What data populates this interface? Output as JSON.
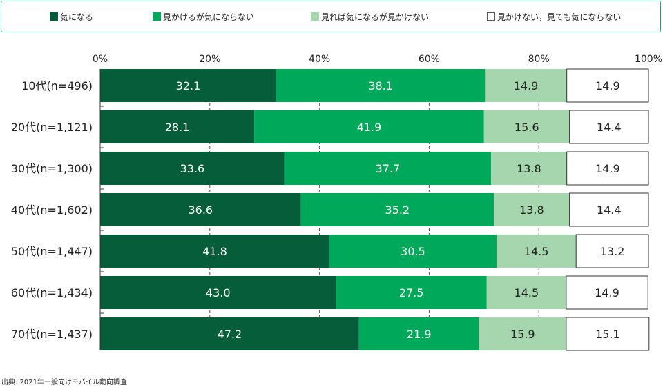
{
  "legend": [
    {
      "label": "気になる",
      "color": "#055d3a"
    },
    {
      "label": "見かけるが気にならない",
      "color": "#00a85a"
    },
    {
      "label": "見れば気になるが見かけない",
      "color": "#a6d6ae"
    },
    {
      "label": "見かけない，見ても気にならない",
      "color": "#ffffff"
    }
  ],
  "chart_data": {
    "type": "bar",
    "orientation": "horizontal",
    "stacked": true,
    "percent_axis_ticks": [
      "0%",
      "20%",
      "40%",
      "60%",
      "80%",
      "100%"
    ],
    "xlim": [
      0,
      100
    ],
    "grid": "vertical dashed",
    "legend_position": "top",
    "categories": [
      "10代(n=496)",
      "20代(n=1,121)",
      "30代(n=1,300)",
      "40代(n=1,602)",
      "50代(n=1,447)",
      "60代(n=1,434)",
      "70代(n=1,437)"
    ],
    "series": [
      {
        "name": "気になる",
        "color": "#055d3a",
        "label_color": "#ffffff",
        "values": [
          32.1,
          28.1,
          33.6,
          36.6,
          41.8,
          43.0,
          47.2
        ],
        "labels": [
          "32.1",
          "28.1",
          "33.6",
          "36.6",
          "41.8",
          "43.0",
          "47.2"
        ]
      },
      {
        "name": "見かけるが気にならない",
        "color": "#00a85a",
        "label_color": "#ffffff",
        "values": [
          38.1,
          41.9,
          37.7,
          35.2,
          30.5,
          27.5,
          21.9
        ],
        "labels": [
          "38.1",
          "41.9",
          "37.7",
          "35.2",
          "30.5",
          "27.5",
          "21.9"
        ]
      },
      {
        "name": "見れば気になるが見かけない",
        "color": "#a6d6ae",
        "label_color": "#222222",
        "values": [
          14.9,
          15.6,
          13.8,
          13.8,
          14.5,
          14.5,
          15.9
        ],
        "labels": [
          "14.9",
          "15.6",
          "13.8",
          "13.8",
          "14.5",
          "14.5",
          "15.9"
        ]
      },
      {
        "name": "見かけない，見ても気にならない",
        "color": "#ffffff",
        "label_color": "#222222",
        "values": [
          14.9,
          14.4,
          14.9,
          14.4,
          13.2,
          14.9,
          15.1
        ],
        "labels": [
          "14.9",
          "14.4",
          "14.9",
          "14.4",
          "13.2",
          "14.9",
          "15.1"
        ]
      }
    ]
  },
  "source": "出典: 2021年一般向けモバイル動向調査"
}
